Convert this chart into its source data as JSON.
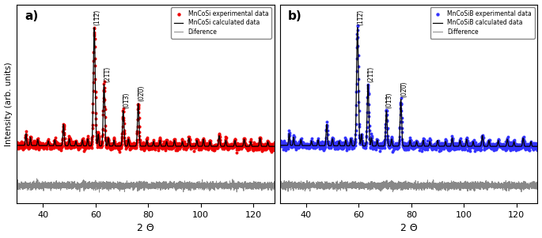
{
  "panel_a": {
    "label": "a)",
    "exp_color": "#EE0000",
    "calc_color": "#000000",
    "diff_color": "#888888",
    "exp_label": "MnCoSi experimental data",
    "calc_label": "MnCoSi calculated data",
    "diff_label": "Diference"
  },
  "panel_b": {
    "label": "b)",
    "exp_color": "#3333FF",
    "calc_color": "#000000",
    "diff_color": "#888888",
    "exp_label": "MnCoSiB experimental data",
    "calc_label": "MnCoSiB calculated data",
    "diff_label": "Difference"
  },
  "peaks_a": {
    "(112)": 59.5,
    "(211)": 63.2,
    "(013)": 70.5,
    "(020)": 76.2
  },
  "peaks_b": {
    "(112)": 59.5,
    "(211)": 63.5,
    "(013)": 70.5,
    "(020)": 76.0
  },
  "xlabel": "2 Θ",
  "ylabel": "Intensity (arb. units)",
  "xmin": 30,
  "xmax": 128,
  "background_color": "#ffffff"
}
